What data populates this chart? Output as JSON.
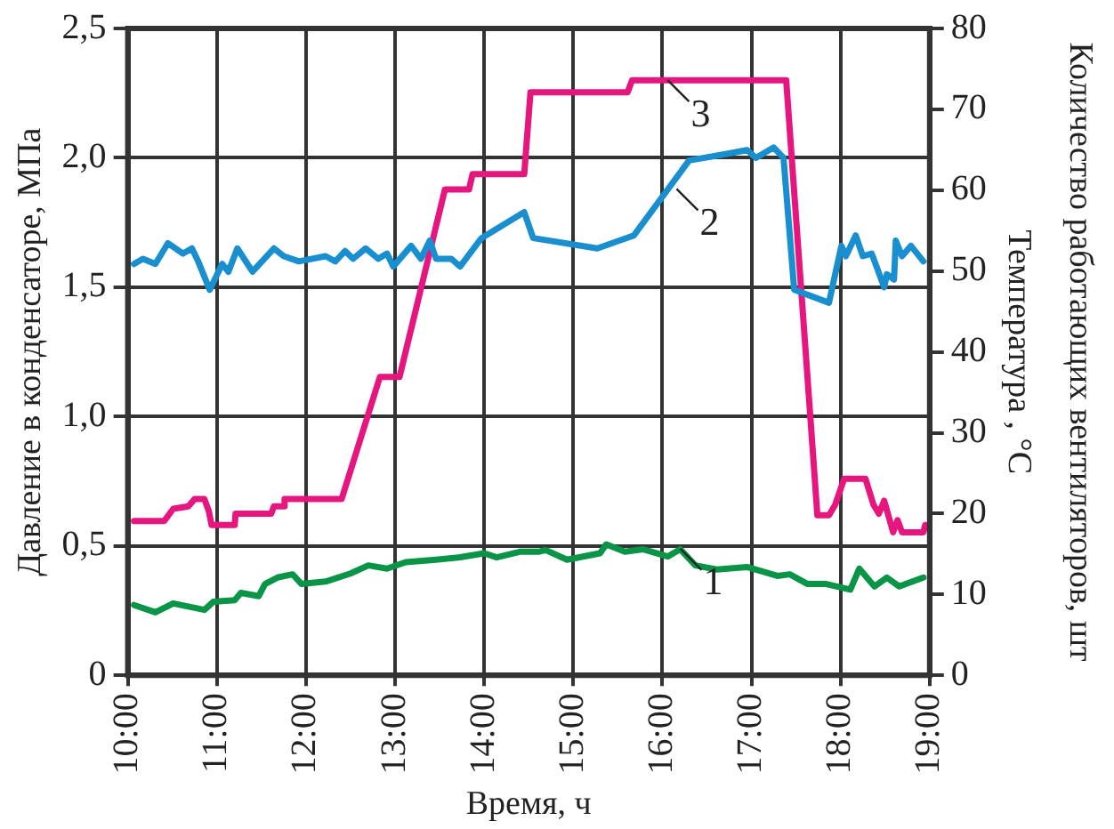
{
  "chart_data": {
    "type": "line",
    "xlabel": "Время, ч",
    "ylabel": "Давление в конденсаторе, МПа",
    "y2label": "Температура , °C",
    "y3label": "Количество работающих вентиляторов, шт",
    "xlim": [
      10,
      19
    ],
    "xticks": [
      {
        "value": 10,
        "label": "10:00"
      },
      {
        "value": 11,
        "label": "11:00"
      },
      {
        "value": 12,
        "label": "12:00"
      },
      {
        "value": 13,
        "label": "13:00"
      },
      {
        "value": 14,
        "label": "14:00"
      },
      {
        "value": 15,
        "label": "15:00"
      },
      {
        "value": 16,
        "label": "16:00"
      },
      {
        "value": 17,
        "label": "17:00"
      },
      {
        "value": 18,
        "label": "18:00"
      },
      {
        "value": 19,
        "label": "19:00"
      }
    ],
    "ylim": [
      0,
      2.5
    ],
    "yticks": [
      0,
      {
        "value": 0.5,
        "label": "0,5"
      },
      {
        "value": 1,
        "label": "1,0"
      },
      {
        "value": 1.5,
        "label": "1,5"
      },
      {
        "value": 2,
        "label": "2,0"
      },
      {
        "value": 2.5,
        "label": "2,5"
      }
    ],
    "y2lim": [
      0,
      80
    ],
    "y2ticks": [
      0,
      10,
      20,
      30,
      40,
      50,
      60,
      70,
      80
    ],
    "grid": true,
    "legend": false,
    "marker": "none",
    "line_style": "solid",
    "annotations": [
      {
        "text": "1",
        "x": 16.2,
        "y": 0.49
      },
      {
        "text": "2",
        "x": 16.16,
        "y": 1.88
      },
      {
        "text": "3",
        "x": 16.06,
        "y": 2.3
      }
    ],
    "series": [
      {
        "color": "#0a9447",
        "axis": "y2",
        "x": [
          10.07,
          10.31,
          10.51,
          10.86,
          10.96,
          11.2,
          11.27,
          11.47,
          11.54,
          11.68,
          11.85,
          11.95,
          12.22,
          12.5,
          12.7,
          12.91,
          13.12,
          13.46,
          13.73,
          14.0,
          14.14,
          14.41,
          14.62,
          14.69,
          14.93,
          15.3,
          15.37,
          15.58,
          15.78,
          16.06,
          16.2,
          16.37,
          16.61,
          16.95,
          17.29,
          17.43,
          17.63,
          17.84,
          18.11,
          18.21,
          18.38,
          18.52,
          18.66,
          18.93
        ],
        "values": [
          8.7,
          7.8,
          8.9,
          8.1,
          9.1,
          9.3,
          10.2,
          9.8,
          11.3,
          12.1,
          12.5,
          11.3,
          11.6,
          12.6,
          13.6,
          13.2,
          14.0,
          14.3,
          14.6,
          15.1,
          14.6,
          15.3,
          15.3,
          15.5,
          14.3,
          15.1,
          16.2,
          15.3,
          15.6,
          14.7,
          15.6,
          13.6,
          13.1,
          13.4,
          12.3,
          12.5,
          11.3,
          11.3,
          10.6,
          13.2,
          11.0,
          12.1,
          11.0,
          12.1
        ]
      },
      {
        "color": "#1a8fd0",
        "x": [
          10.07,
          10.17,
          10.31,
          10.45,
          10.62,
          10.72,
          10.79,
          10.92,
          11.06,
          11.13,
          11.23,
          11.4,
          11.64,
          11.75,
          11.92,
          12.22,
          12.33,
          12.44,
          12.53,
          12.67,
          12.81,
          12.91,
          12.98,
          13.18,
          13.29,
          13.39,
          13.46,
          13.63,
          13.73,
          13.97,
          14.45,
          14.55,
          15.27,
          15.68,
          16.3,
          16.64,
          16.95,
          17.05,
          17.25,
          17.36,
          17.48,
          17.87,
          18.01,
          18.06,
          18.17,
          18.25,
          18.35,
          18.49,
          18.52,
          18.6,
          18.62,
          18.69,
          18.79,
          18.93
        ],
        "values": [
          1.59,
          1.61,
          1.59,
          1.67,
          1.63,
          1.65,
          1.6,
          1.49,
          1.59,
          1.56,
          1.65,
          1.56,
          1.65,
          1.62,
          1.6,
          1.62,
          1.6,
          1.64,
          1.61,
          1.65,
          1.61,
          1.63,
          1.58,
          1.66,
          1.61,
          1.68,
          1.61,
          1.61,
          1.58,
          1.69,
          1.79,
          1.69,
          1.65,
          1.7,
          1.99,
          2.01,
          2.03,
          2.0,
          2.04,
          2.0,
          1.49,
          1.44,
          1.66,
          1.62,
          1.7,
          1.62,
          1.63,
          1.5,
          1.55,
          1.53,
          1.68,
          1.62,
          1.66,
          1.6
        ]
      },
      {
        "color": "#e5177f",
        "axis": "y2",
        "x": [
          10.07,
          10.41,
          10.51,
          10.68,
          10.75,
          10.86,
          10.91,
          10.94,
          11.2,
          11.21,
          11.61,
          11.64,
          11.75,
          11.76,
          12.4,
          12.83,
          13.05,
          13.56,
          13.83,
          13.87,
          14.45,
          14.52,
          15.61,
          15.66,
          17.39,
          17.74,
          17.87,
          17.94,
          18.04,
          18.28,
          18.37,
          18.43,
          18.49,
          18.59,
          18.64,
          18.69,
          18.93,
          18.95
        ],
        "values": [
          19.1,
          19.1,
          20.6,
          20.9,
          21.8,
          21.8,
          20.3,
          18.6,
          18.6,
          20.0,
          20.0,
          20.9,
          20.9,
          21.8,
          21.8,
          36.9,
          36.9,
          60.1,
          60.1,
          62.0,
          62.0,
          72.1,
          72.1,
          73.6,
          73.6,
          19.8,
          19.8,
          21.1,
          24.3,
          24.3,
          21.1,
          20.0,
          21.6,
          17.7,
          19.2,
          17.7,
          17.7,
          18.6
        ]
      }
    ]
  }
}
